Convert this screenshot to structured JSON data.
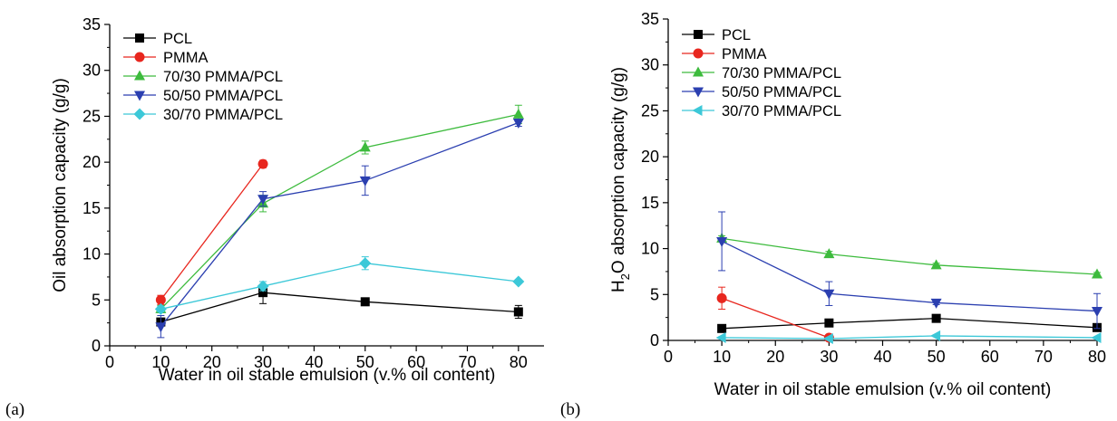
{
  "panels": [
    {
      "type": "line",
      "panel_label": "(a)",
      "xlabel": "Water in oil stable emulsion (v.% oil content)",
      "ylabel": "Oil absorption capacity (g/g)",
      "ylabel_parts": [],
      "xlim": [
        0,
        85
      ],
      "ylim": [
        0,
        35
      ],
      "xticks": [
        0,
        10,
        20,
        30,
        40,
        50,
        60,
        70,
        80
      ],
      "yticks": [
        0,
        5,
        10,
        15,
        20,
        25,
        30,
        35
      ],
      "legend_position": "top-left",
      "grid": false,
      "series": [
        {
          "name": "PCL",
          "color": "#000000",
          "marker": "square",
          "points": [
            {
              "x": 10,
              "y": 2.6,
              "err": 0.4
            },
            {
              "x": 30,
              "y": 5.8,
              "err": 1.2
            },
            {
              "x": 50,
              "y": 4.8,
              "err": 0.3
            },
            {
              "x": 80,
              "y": 3.7,
              "err": 0.7
            }
          ]
        },
        {
          "name": "PMMA",
          "color": "#e8261e",
          "marker": "circle",
          "points": [
            {
              "x": 10,
              "y": 5.0,
              "err": 0.5
            },
            {
              "x": 30,
              "y": 19.8,
              "err": 0.4
            }
          ]
        },
        {
          "name": "70/30 PMMA/PCL",
          "color": "#3dbb3d",
          "marker": "triangle-up",
          "points": [
            {
              "x": 10,
              "y": 4.0,
              "err": 0.4
            },
            {
              "x": 30,
              "y": 15.5,
              "err": 0.9
            },
            {
              "x": 50,
              "y": 21.6,
              "err": 0.7
            },
            {
              "x": 80,
              "y": 25.2,
              "err": 1.0
            }
          ]
        },
        {
          "name": "50/50 PMMA/PCL",
          "color": "#2b3fb0",
          "marker": "triangle-down",
          "points": [
            {
              "x": 10,
              "y": 2.1,
              "err": 1.2
            },
            {
              "x": 30,
              "y": 16.0,
              "err": 0.8
            },
            {
              "x": 50,
              "y": 18.0,
              "err": 1.6
            },
            {
              "x": 80,
              "y": 24.3,
              "err": 0.4
            }
          ]
        },
        {
          "name": "30/70 PMMA/PCL",
          "color": "#3cc8d8",
          "marker": "diamond",
          "points": [
            {
              "x": 10,
              "y": 4.0,
              "err": 0.3
            },
            {
              "x": 30,
              "y": 6.5,
              "err": 0.5
            },
            {
              "x": 50,
              "y": 9.0,
              "err": 0.7
            },
            {
              "x": 80,
              "y": 7.0,
              "err": 0.2
            }
          ]
        }
      ]
    },
    {
      "type": "line",
      "panel_label": "(b)",
      "xlabel": "Water in oil stable emulsion (v.% oil content)",
      "ylabel": "",
      "ylabel_parts": [
        "H",
        "2",
        "O absorption capacity (g/g)"
      ],
      "xlim": [
        0,
        80
      ],
      "ylim": [
        0,
        35
      ],
      "xticks": [
        0,
        10,
        20,
        30,
        40,
        50,
        60,
        70,
        80
      ],
      "yticks": [
        0,
        5,
        10,
        15,
        20,
        25,
        30,
        35
      ],
      "legend_position": "top-left",
      "grid": false,
      "series": [
        {
          "name": "PCL",
          "color": "#000000",
          "marker": "square",
          "points": [
            {
              "x": 10,
              "y": 1.3,
              "err": 0.3
            },
            {
              "x": 30,
              "y": 1.9,
              "err": 0.2
            },
            {
              "x": 50,
              "y": 2.4,
              "err": 0.2
            },
            {
              "x": 80,
              "y": 1.4,
              "err": 0.3
            }
          ]
        },
        {
          "name": "PMMA",
          "color": "#e8261e",
          "marker": "circle",
          "points": [
            {
              "x": 10,
              "y": 4.6,
              "err": 1.2
            },
            {
              "x": 30,
              "y": 0.3,
              "err": 0.1
            }
          ]
        },
        {
          "name": "70/30 PMMA/PCL",
          "color": "#3dbb3d",
          "marker": "triangle-up",
          "points": [
            {
              "x": 10,
              "y": 11.1,
              "err": 0.3
            },
            {
              "x": 30,
              "y": 9.4,
              "err": 0.3
            },
            {
              "x": 50,
              "y": 8.2,
              "err": 0.2
            },
            {
              "x": 80,
              "y": 7.2,
              "err": 0.2
            }
          ]
        },
        {
          "name": "50/50 PMMA/PCL",
          "color": "#2b3fb0",
          "marker": "triangle-down",
          "points": [
            {
              "x": 10,
              "y": 10.8,
              "err": 3.2
            },
            {
              "x": 30,
              "y": 5.1,
              "err": 1.3
            },
            {
              "x": 50,
              "y": 4.1,
              "err": 0.2
            },
            {
              "x": 80,
              "y": 3.2,
              "err": 1.9
            }
          ]
        },
        {
          "name": "30/70 PMMA/PCL",
          "color": "#3cc8d8",
          "marker": "triangle-left",
          "points": [
            {
              "x": 10,
              "y": 0.3,
              "err": 0.1
            },
            {
              "x": 30,
              "y": 0.2,
              "err": 0.1
            },
            {
              "x": 50,
              "y": 0.5,
              "err": 0.1
            },
            {
              "x": 80,
              "y": 0.3,
              "err": 0.1
            }
          ]
        }
      ]
    }
  ],
  "chart_data": [
    {
      "type": "line",
      "xlabel": "Water in oil stable emulsion (v.% oil content)",
      "ylabel": "Oil absorption capacity (g/g)",
      "xlim": [
        0,
        85
      ],
      "ylim": [
        0,
        35
      ],
      "grid": false,
      "legend": "top-left",
      "series": [
        {
          "name": "PCL",
          "x": [
            10,
            30,
            50,
            80
          ],
          "y": [
            2.6,
            5.8,
            4.8,
            3.7
          ]
        },
        {
          "name": "PMMA",
          "x": [
            10,
            30
          ],
          "y": [
            5.0,
            19.8
          ]
        },
        {
          "name": "70/30 PMMA/PCL",
          "x": [
            10,
            30,
            50,
            80
          ],
          "y": [
            4.0,
            15.5,
            21.6,
            25.2
          ]
        },
        {
          "name": "50/50 PMMA/PCL",
          "x": [
            10,
            30,
            50,
            80
          ],
          "y": [
            2.1,
            16.0,
            18.0,
            24.3
          ]
        },
        {
          "name": "30/70 PMMA/PCL",
          "x": [
            10,
            30,
            50,
            80
          ],
          "y": [
            4.0,
            6.5,
            9.0,
            7.0
          ]
        }
      ]
    },
    {
      "type": "line",
      "xlabel": "Water in oil stable emulsion (v.% oil content)",
      "ylabel": "H2O absorption capacity (g/g)",
      "xlim": [
        0,
        80
      ],
      "ylim": [
        0,
        35
      ],
      "grid": false,
      "legend": "top-left",
      "series": [
        {
          "name": "PCL",
          "x": [
            10,
            30,
            50,
            80
          ],
          "y": [
            1.3,
            1.9,
            2.4,
            1.4
          ]
        },
        {
          "name": "PMMA",
          "x": [
            10,
            30
          ],
          "y": [
            4.6,
            0.3
          ]
        },
        {
          "name": "70/30 PMMA/PCL",
          "x": [
            10,
            30,
            50,
            80
          ],
          "y": [
            11.1,
            9.4,
            8.2,
            7.2
          ]
        },
        {
          "name": "50/50 PMMA/PCL",
          "x": [
            10,
            30,
            50,
            80
          ],
          "y": [
            10.8,
            5.1,
            4.1,
            3.2
          ]
        },
        {
          "name": "30/70 PMMA/PCL",
          "x": [
            10,
            30,
            50,
            80
          ],
          "y": [
            0.3,
            0.2,
            0.5,
            0.3
          ]
        }
      ]
    }
  ]
}
